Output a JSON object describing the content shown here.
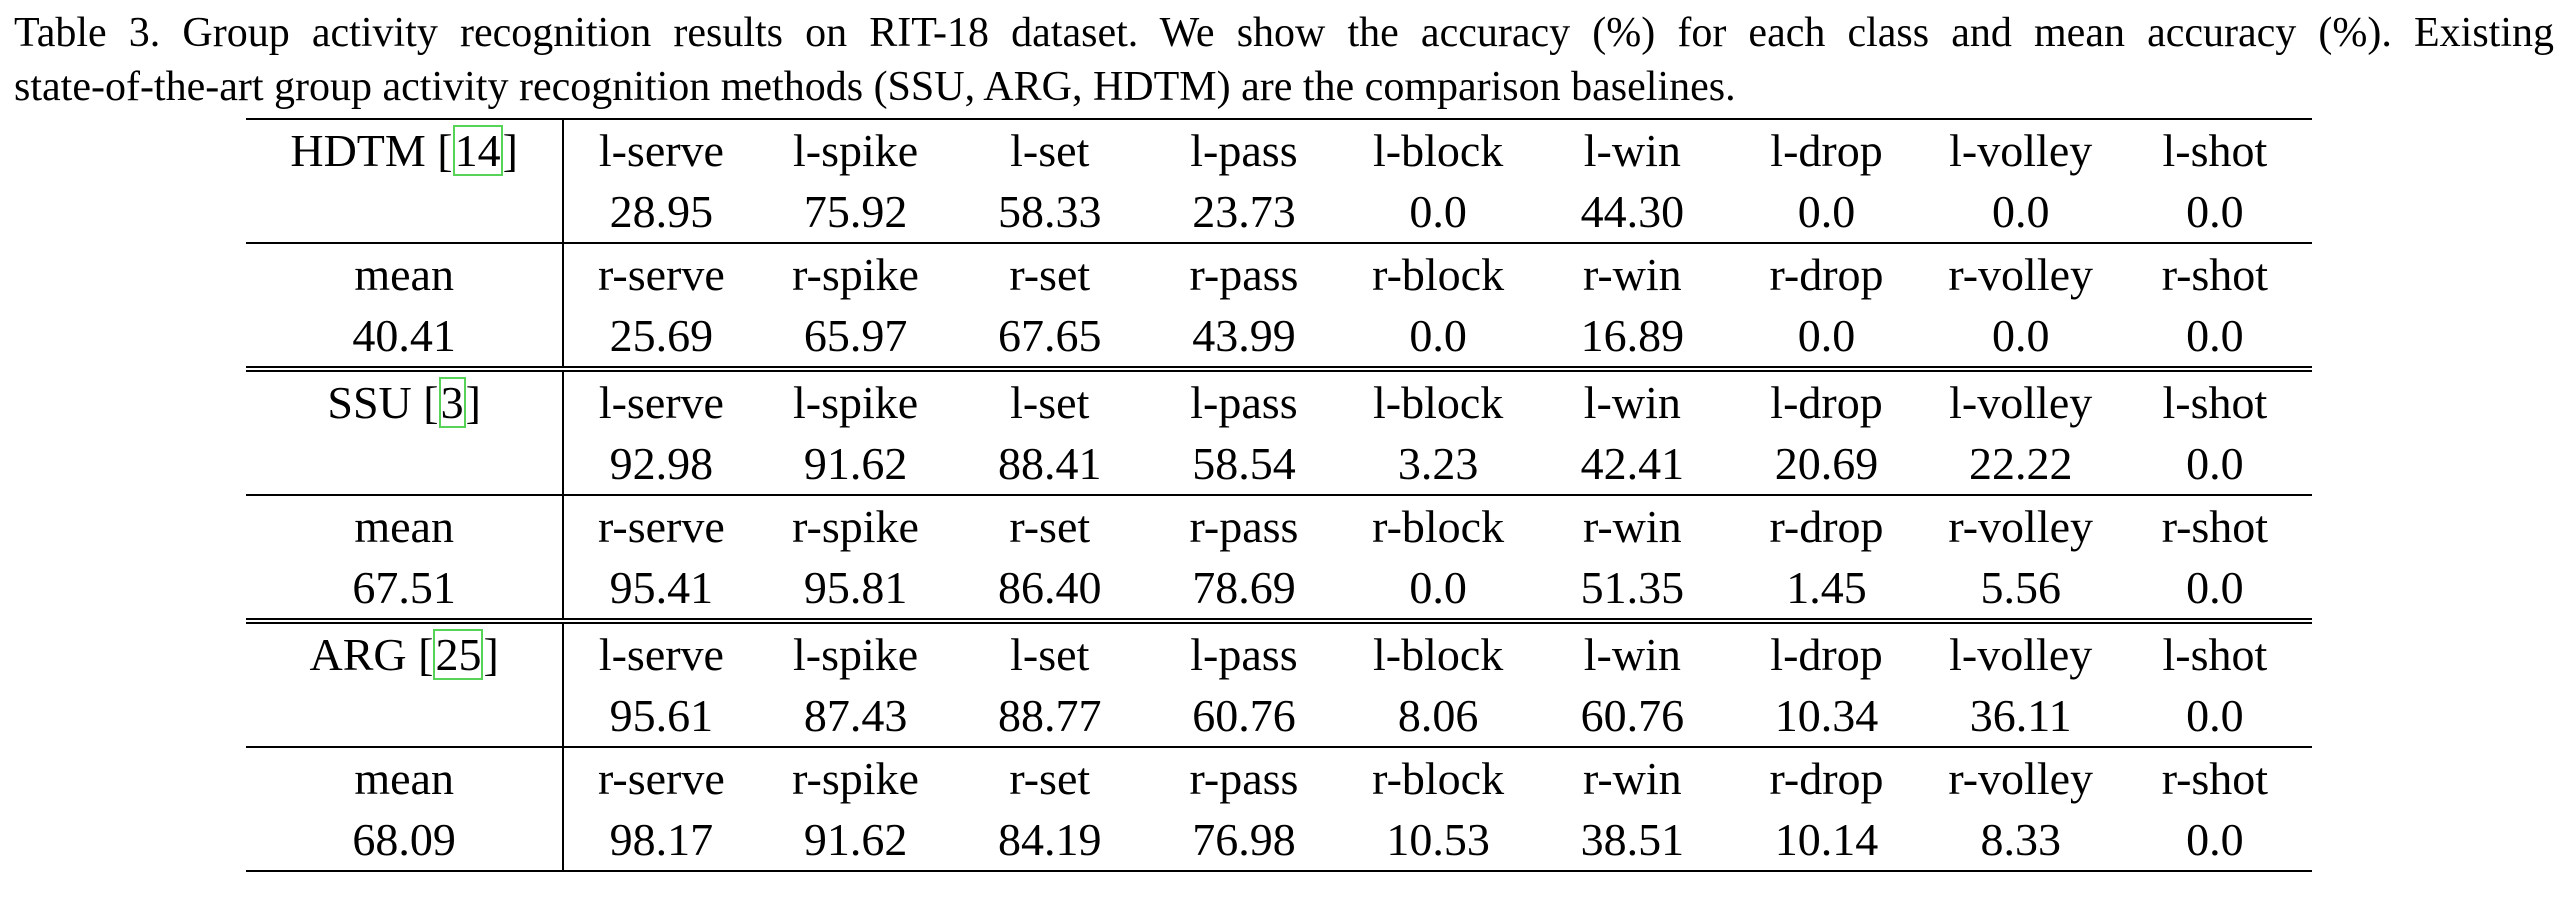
{
  "caption": {
    "line1": "Table 3. Group activity recognition results on RIT-18 dataset. We show the accuracy (%) for each class and mean accuracy (%). Existing",
    "line2": "state-of-the-art group activity recognition methods (SSU, ARG, HDTM) are the comparison baselines."
  },
  "methods": [
    {
      "name": "HDTM",
      "ref": "14",
      "left_classes": [
        "l-serve",
        "l-spike",
        "l-set",
        "l-pass",
        "l-block",
        "l-win",
        "l-drop",
        "l-volley",
        "l-shot"
      ],
      "left_values": [
        "28.95",
        "75.92",
        "58.33",
        "23.73",
        "0.0",
        "44.30",
        "0.0",
        "0.0",
        "0.0"
      ],
      "mean_label": "mean",
      "mean_value": "40.41",
      "right_classes": [
        "r-serve",
        "r-spike",
        "r-set",
        "r-pass",
        "r-block",
        "r-win",
        "r-drop",
        "r-volley",
        "r-shot"
      ],
      "right_values": [
        "25.69",
        "65.97",
        "67.65",
        "43.99",
        "0.0",
        "16.89",
        "0.0",
        "0.0",
        "0.0"
      ]
    },
    {
      "name": "SSU",
      "ref": "3",
      "left_classes": [
        "l-serve",
        "l-spike",
        "l-set",
        "l-pass",
        "l-block",
        "l-win",
        "l-drop",
        "l-volley",
        "l-shot"
      ],
      "left_values": [
        "92.98",
        "91.62",
        "88.41",
        "58.54",
        "3.23",
        "42.41",
        "20.69",
        "22.22",
        "0.0"
      ],
      "mean_label": "mean",
      "mean_value": "67.51",
      "right_classes": [
        "r-serve",
        "r-spike",
        "r-set",
        "r-pass",
        "r-block",
        "r-win",
        "r-drop",
        "r-volley",
        "r-shot"
      ],
      "right_values": [
        "95.41",
        "95.81",
        "86.40",
        "78.69",
        "0.0",
        "51.35",
        "1.45",
        "5.56",
        "0.0"
      ]
    },
    {
      "name": "ARG",
      "ref": "25",
      "left_classes": [
        "l-serve",
        "l-spike",
        "l-set",
        "l-pass",
        "l-block",
        "l-win",
        "l-drop",
        "l-volley",
        "l-shot"
      ],
      "left_values": [
        "95.61",
        "87.43",
        "88.77",
        "60.76",
        "8.06",
        "60.76",
        "10.34",
        "36.11",
        "0.0"
      ],
      "mean_label": "mean",
      "mean_value": "68.09",
      "right_classes": [
        "r-serve",
        "r-spike",
        "r-set",
        "r-pass",
        "r-block",
        "r-win",
        "r-drop",
        "r-volley",
        "r-shot"
      ],
      "right_values": [
        "98.17",
        "91.62",
        "84.19",
        "76.98",
        "10.53",
        "38.51",
        "10.14",
        "8.33",
        "0.0"
      ]
    }
  ]
}
